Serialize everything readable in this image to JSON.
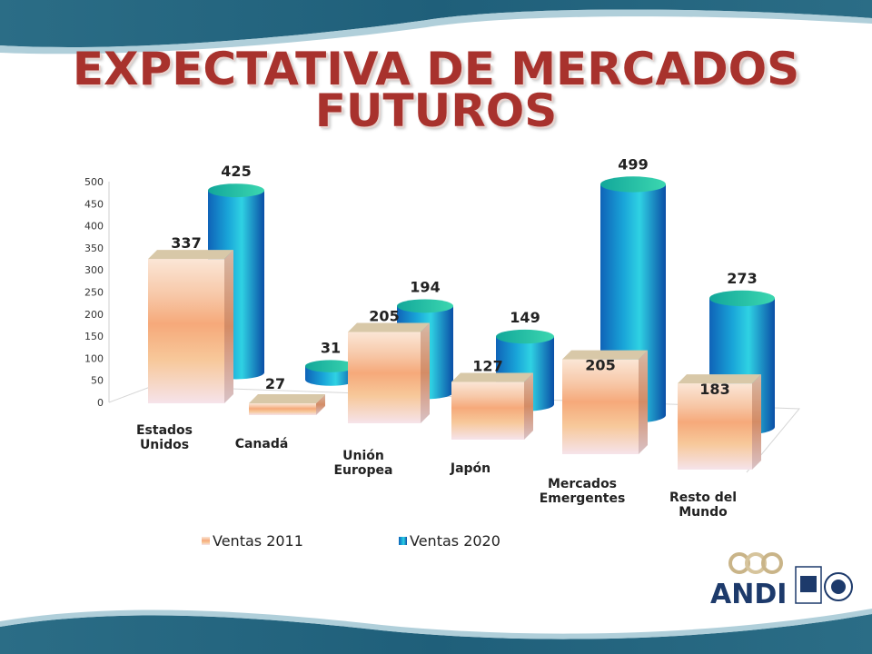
{
  "title_line1": "EXPECTATIVA DE MERCADOS",
  "title_line2": "FUTUROS",
  "logo_text": "ANDI",
  "colors": {
    "title": "#a8322d",
    "banner": "#1f5f7a",
    "series_2011": "#f6b47a",
    "series_2020": "#18b3c7"
  },
  "chart_data": {
    "type": "bar",
    "style": "3d-clustered",
    "categories": [
      [
        "Estados",
        "Unidos"
      ],
      [
        "Canadá"
      ],
      [
        "Unión",
        "Europea"
      ],
      [
        "Japón"
      ],
      [
        "Mercados",
        "Emergentes"
      ],
      [
        "Resto del",
        "Mundo"
      ]
    ],
    "series": [
      {
        "name": "Ventas 2011",
        "shape": "box",
        "values": [
          337,
          27,
          205,
          127,
          205,
          183
        ]
      },
      {
        "name": "Ventas 2020",
        "shape": "cylinder",
        "values": [
          425,
          31,
          194,
          149,
          499,
          273
        ]
      }
    ],
    "yticks": [
      0,
      50,
      100,
      150,
      200,
      250,
      300,
      350,
      400,
      450,
      500
    ],
    "ylim": [
      0,
      500
    ],
    "legend_position": "bottom"
  }
}
